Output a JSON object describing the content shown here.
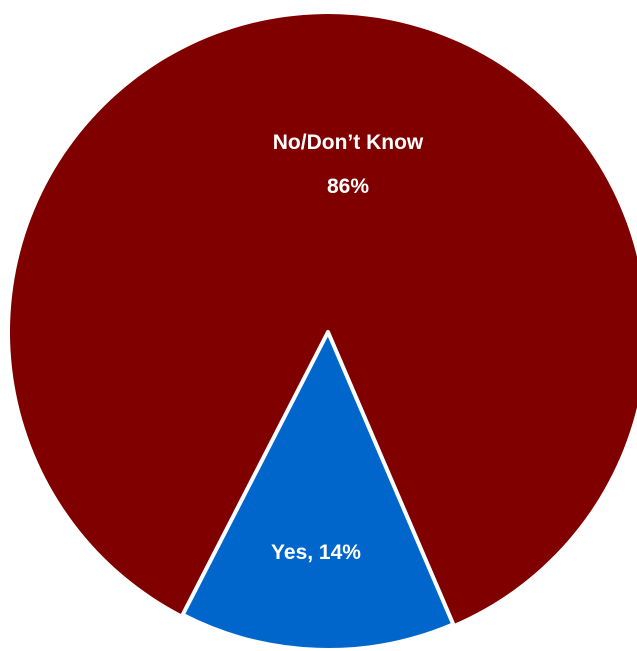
{
  "chart_data": {
    "type": "pie",
    "title": "",
    "slices": [
      {
        "label": "No/Don’t Know",
        "value": 86,
        "value_label": "86%",
        "color": "#800000"
      },
      {
        "label": "Yes",
        "value": 14,
        "value_label": "Yes, 14%",
        "color": "#0066CC"
      }
    ],
    "legend": "none",
    "slice_border_color": "#ffffff"
  }
}
